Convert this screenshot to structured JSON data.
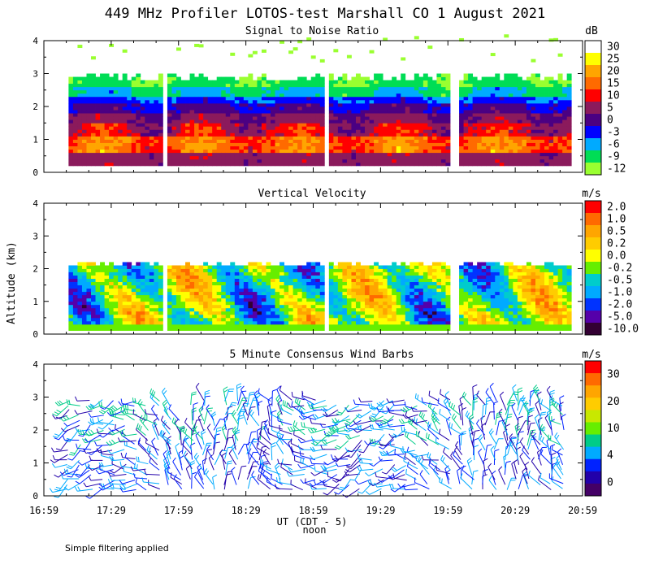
{
  "figure": {
    "title": "449 MHz Profiler LOTOS-test Marshall CO  1 August 2021",
    "ylabel": "Altitude (km)",
    "xlabel": "UT  (CDT - 5)",
    "noon_label": "noon",
    "footnote": "Simple filtering applied",
    "x_ticks": [
      "16:59",
      "17:29",
      "17:59",
      "18:29",
      "18:59",
      "19:29",
      "19:59",
      "20:29",
      "20:59"
    ],
    "y_ticks": [
      "0",
      "1",
      "2",
      "3",
      "4"
    ]
  },
  "chart_data": [
    {
      "type": "heatmap",
      "title": "Signal to Noise Ratio",
      "unit": "dB",
      "ylim": [
        0,
        4
      ],
      "xlim": [
        "16:59",
        "20:59"
      ],
      "colorbar_labels": [
        "30",
        "25",
        "20",
        "15",
        "10",
        "5",
        "0",
        "-3",
        "-6",
        "-9",
        "-12"
      ],
      "colorbar_colors": [
        "#ffffff",
        "#ffff00",
        "#ffa500",
        "#ff6a00",
        "#ff0000",
        "#8b1a5c",
        "#4b0082",
        "#0000ff",
        "#00aaff",
        "#00dd55",
        "#9aff30"
      ],
      "data_gaps_utc": [
        [
          "17:51",
          "17:53"
        ],
        [
          "19:03",
          "19:05"
        ],
        [
          "20:00",
          "20:02"
        ]
      ],
      "layers": [
        {
          "from_km": 0.25,
          "to_km": 0.55,
          "band": "5 to 10"
        },
        {
          "from_km": 0.55,
          "to_km": 1.5,
          "band": "10 to 25"
        },
        {
          "from_km": 1.5,
          "to_km": 2.2,
          "band": "-3 to 5"
        },
        {
          "from_km": 2.2,
          "to_km": 3.0,
          "band": "-12 to 0"
        }
      ]
    },
    {
      "type": "heatmap",
      "title": "Vertical Velocity",
      "unit": "m/s",
      "ylim": [
        0,
        4
      ],
      "xlim": [
        "16:59",
        "20:59"
      ],
      "colorbar_labels": [
        "2.0",
        "1.0",
        "0.5",
        "0.2",
        "0.0",
        "-0.2",
        "-0.5",
        "-1.0",
        "-2.0",
        "-5.0",
        "-10.0"
      ],
      "colorbar_colors": [
        "#ff0000",
        "#ff6a00",
        "#ffa500",
        "#ffcc00",
        "#ffff00",
        "#66ee00",
        "#00cccc",
        "#00aaff",
        "#0033ff",
        "#5500aa",
        "#330033"
      ],
      "data_gaps_utc": [
        [
          "17:51",
          "17:53"
        ],
        [
          "19:03",
          "19:05"
        ],
        [
          "20:00",
          "20:02"
        ]
      ],
      "layers": [
        {
          "from_km": 0.1,
          "to_km": 2.2,
          "band": "-1.0 to 1.0"
        }
      ]
    },
    {
      "type": "scatter",
      "title": "5 Minute Consensus Wind Barbs",
      "unit": "m/s",
      "ylim": [
        0,
        4
      ],
      "xlim": [
        "16:59",
        "20:59"
      ],
      "colorbar_labels": [
        "30",
        "20",
        "10",
        "4",
        "0"
      ],
      "colorbar_colors": [
        "#ff0000",
        "#ff6a00",
        "#ffa500",
        "#ffcc00",
        "#c8e800",
        "#66ee00",
        "#00cc88",
        "#00aaff",
        "#0022ff",
        "#2200aa",
        "#440066"
      ],
      "speed_range_ms": [
        0,
        15
      ],
      "altitude_range_km": [
        0.2,
        2.9
      ]
    }
  ]
}
